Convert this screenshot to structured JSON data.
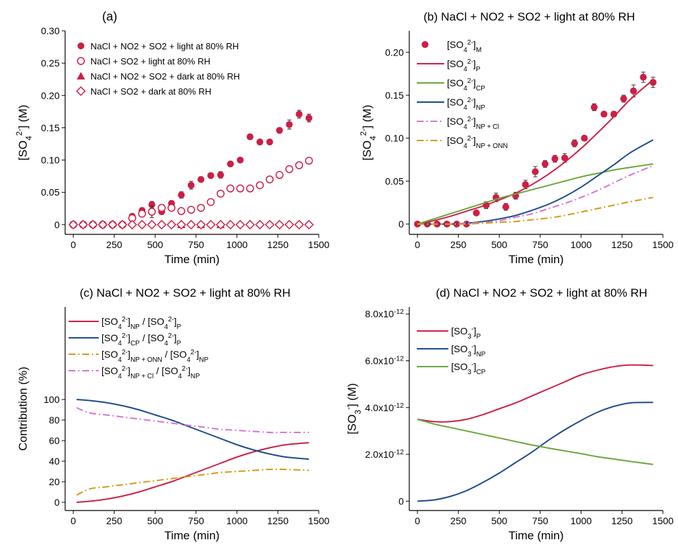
{
  "colors": {
    "red": "#cc1f46",
    "blue": "#1b4a8c",
    "green": "#6aa53a",
    "magenta": "#d673d6",
    "orange": "#d29b14"
  },
  "chart_data": [
    {
      "id": "a",
      "type": "scatter",
      "panel_label": "(a)",
      "title": "",
      "xlabel": "Time (min)",
      "ylabel": "[SO4 2-] (M)",
      "xlim": [
        -50,
        1500
      ],
      "ylim": [
        -0.015,
        0.3
      ],
      "xticks": [
        0,
        250,
        500,
        750,
        1000,
        1250,
        1500
      ],
      "yticks": [
        0,
        0.05,
        0.1,
        0.15,
        0.2,
        0.25,
        0.3
      ],
      "ytick_labels": [
        "0",
        "0.05",
        "0.10",
        "0.15",
        "0.20",
        "0.25",
        "0.30"
      ],
      "legend_position": "top-left",
      "series": [
        {
          "name": "NaCl + NO2 + SO2 + light at 80% RH",
          "marker": "filled-circle",
          "color": "#cc1f46",
          "x": [
            0,
            60,
            120,
            180,
            240,
            300,
            360,
            420,
            480,
            540,
            600,
            660,
            720,
            780,
            840,
            900,
            960,
            1020,
            1080,
            1140,
            1200,
            1260,
            1320,
            1380,
            1440
          ],
          "y": [
            0,
            0,
            0,
            0,
            0,
            0,
            0.013,
            0.022,
            0.031,
            0.02,
            0.033,
            0.046,
            0.061,
            0.07,
            0.076,
            0.077,
            0.094,
            0.1,
            0.136,
            0.128,
            0.128,
            0.146,
            0.155,
            0.171,
            0.165
          ],
          "err": [
            0.002,
            0.002,
            0.002,
            0.002,
            0.002,
            0.002,
            0.003,
            0.004,
            0.005,
            0.004,
            0.004,
            0.005,
            0.006,
            0.004,
            0.004,
            0.005,
            0.004,
            0.003,
            0.004,
            0.003,
            0.003,
            0.004,
            0.007,
            0.006,
            0.006
          ]
        },
        {
          "name": "NaCl + SO2 + light at 80% RH",
          "marker": "open-circle",
          "color": "#cc1f46",
          "x": [
            0,
            60,
            120,
            180,
            240,
            300,
            360,
            420,
            480,
            540,
            600,
            660,
            720,
            780,
            840,
            900,
            960,
            1020,
            1080,
            1140,
            1200,
            1260,
            1320,
            1380,
            1440
          ],
          "y": [
            0,
            0,
            0,
            0,
            0,
            0,
            0.01,
            0.017,
            0.02,
            0.026,
            0.026,
            0.021,
            0.023,
            0.026,
            0.035,
            0.048,
            0.056,
            0.056,
            0.056,
            0.061,
            0.07,
            0.077,
            0.086,
            0.092,
            0.099
          ],
          "err": [
            0.002,
            0.002,
            0.002,
            0.002,
            0.002,
            0.002,
            0.004,
            0.005,
            0.009,
            0.005,
            0.004,
            0.004,
            0.003,
            0.003,
            0.003,
            0.003,
            0.004,
            0.004,
            0.003,
            0.003,
            0.003,
            0.004,
            0.004,
            0.005,
            0.004
          ]
        },
        {
          "name": "NaCl + NO2 + SO2 + dark at 80% RH",
          "marker": "filled-triangle",
          "color": "#cc1f46",
          "x": [
            660,
            780,
            900
          ],
          "y": [
            0,
            0,
            0
          ]
        },
        {
          "name": "NaCl + SO2 + dark at 80% RH",
          "marker": "open-diamond",
          "color": "#cc1f46",
          "x": [
            0,
            60,
            120,
            180,
            240,
            300,
            360,
            420,
            480,
            540,
            600,
            660,
            720,
            780,
            840,
            900,
            960,
            1020,
            1080,
            1140,
            1200,
            1260,
            1320,
            1380,
            1440
          ],
          "y": [
            0,
            0,
            0,
            0,
            0,
            0,
            0,
            0,
            0,
            0,
            0,
            0,
            0,
            0,
            0,
            0,
            0,
            0,
            0,
            0,
            0,
            0,
            0,
            0,
            0
          ]
        }
      ]
    },
    {
      "id": "b",
      "type": "line",
      "panel_label": "(b)",
      "title": "NaCl + NO2 + SO2 + light at 80% RH",
      "xlabel": "Time (min)",
      "ylabel": "[SO4 2-] (M)",
      "xlim": [
        -50,
        1500
      ],
      "ylim": [
        -0.012,
        0.225
      ],
      "xticks": [
        0,
        250,
        500,
        750,
        1000,
        1250,
        1500
      ],
      "yticks": [
        0,
        0.05,
        0.1,
        0.15,
        0.2
      ],
      "ytick_labels": [
        "0",
        "0.05",
        "0.10",
        "0.15",
        "0.20"
      ],
      "legend_position": "top-left",
      "series": [
        {
          "name": "[SO4 2-]M",
          "marker": "filled-circle",
          "color": "#cc1f46",
          "x": [
            0,
            60,
            120,
            180,
            240,
            300,
            360,
            420,
            480,
            540,
            600,
            660,
            720,
            780,
            840,
            900,
            960,
            1020,
            1080,
            1140,
            1200,
            1260,
            1320,
            1380,
            1440
          ],
          "y": [
            0,
            0,
            0,
            0,
            0,
            0,
            0.013,
            0.022,
            0.031,
            0.02,
            0.033,
            0.046,
            0.061,
            0.07,
            0.076,
            0.077,
            0.094,
            0.1,
            0.136,
            0.128,
            0.128,
            0.146,
            0.155,
            0.171,
            0.165
          ],
          "err": [
            0.002,
            0.002,
            0.002,
            0.002,
            0.002,
            0.002,
            0.003,
            0.004,
            0.005,
            0.004,
            0.004,
            0.005,
            0.006,
            0.004,
            0.004,
            0.005,
            0.004,
            0.003,
            0.004,
            0.003,
            0.003,
            0.004,
            0.007,
            0.006,
            0.006
          ]
        },
        {
          "name": "[SO4 2-]P",
          "style": "solid",
          "color": "#cc1f46",
          "x": [
            0,
            100,
            200,
            300,
            400,
            500,
            600,
            700,
            800,
            900,
            1000,
            1100,
            1200,
            1300,
            1440
          ],
          "y": [
            0,
            0.004,
            0.009,
            0.015,
            0.021,
            0.028,
            0.036,
            0.046,
            0.058,
            0.072,
            0.088,
            0.106,
            0.125,
            0.145,
            0.168
          ]
        },
        {
          "name": "[SO4 2-]CP",
          "style": "solid",
          "color": "#6aa53a",
          "x": [
            0,
            100,
            200,
            300,
            400,
            500,
            600,
            700,
            800,
            900,
            1000,
            1100,
            1200,
            1300,
            1440
          ],
          "y": [
            0,
            0.006,
            0.012,
            0.018,
            0.024,
            0.03,
            0.035,
            0.04,
            0.045,
            0.05,
            0.055,
            0.059,
            0.063,
            0.066,
            0.07
          ]
        },
        {
          "name": "[SO4 2-]NP",
          "style": "solid",
          "color": "#1b4a8c",
          "x": [
            0,
            100,
            200,
            300,
            400,
            500,
            600,
            700,
            800,
            900,
            1000,
            1100,
            1200,
            1300,
            1440
          ],
          "y": [
            0,
            0,
            0,
            0.001,
            0.003,
            0.006,
            0.01,
            0.016,
            0.023,
            0.032,
            0.043,
            0.056,
            0.069,
            0.083,
            0.098
          ]
        },
        {
          "name": "[SO4 2-]NP + Cl",
          "style": "dashdot",
          "color": "#d673d6",
          "x": [
            0,
            100,
            200,
            300,
            400,
            500,
            600,
            700,
            800,
            900,
            1000,
            1100,
            1200,
            1300,
            1440
          ],
          "y": [
            0,
            0,
            0,
            0.001,
            0.002,
            0.004,
            0.008,
            0.012,
            0.018,
            0.024,
            0.031,
            0.039,
            0.048,
            0.057,
            0.068
          ]
        },
        {
          "name": "[SO4 2-]NP + ONN",
          "style": "dashdot",
          "color": "#d29b14",
          "x": [
            0,
            100,
            200,
            300,
            400,
            500,
            600,
            700,
            800,
            900,
            1000,
            1100,
            1200,
            1300,
            1440
          ],
          "y": [
            0,
            0,
            0,
            0,
            0.001,
            0.002,
            0.003,
            0.005,
            0.007,
            0.01,
            0.014,
            0.018,
            0.022,
            0.026,
            0.031
          ]
        }
      ]
    },
    {
      "id": "c",
      "type": "line",
      "panel_label": "(c)",
      "title": "NaCl + NO2 + SO2 + light at 80% RH",
      "xlabel": "Time (min)",
      "ylabel": "Contribution (%)",
      "xlim": [
        -50,
        1500
      ],
      "ylim": [
        -8,
        190
      ],
      "xticks": [
        0,
        250,
        500,
        750,
        1000,
        1250,
        1500
      ],
      "yticks": [
        0,
        20,
        40,
        60,
        80,
        100
      ],
      "ytick_labels": [
        "0",
        "20",
        "40",
        "60",
        "80",
        "100"
      ],
      "legend_position": "top-left",
      "series": [
        {
          "name": "[SO4 2-]NP / [SO4 2-]P",
          "style": "solid",
          "color": "#cc1f46",
          "x": [
            20,
            100,
            200,
            300,
            400,
            500,
            600,
            700,
            800,
            900,
            1000,
            1100,
            1200,
            1300,
            1440
          ],
          "y": [
            0,
            1,
            3,
            6,
            10,
            15,
            20,
            26,
            32,
            38,
            44,
            49,
            53,
            56,
            58
          ]
        },
        {
          "name": "[SO4 2-]CP / [SO4 2-]P",
          "style": "solid",
          "color": "#1b4a8c",
          "x": [
            20,
            100,
            200,
            300,
            400,
            500,
            600,
            700,
            800,
            900,
            1000,
            1100,
            1200,
            1300,
            1440
          ],
          "y": [
            100,
            99,
            97,
            94,
            90,
            85,
            80,
            74,
            68,
            62,
            56,
            51,
            47,
            44,
            42
          ]
        },
        {
          "name": "[SO4 2-]NP + ONN / [SO4 2-]NP",
          "style": "dashdot",
          "color": "#d29b14",
          "x": [
            20,
            100,
            200,
            300,
            400,
            500,
            600,
            700,
            800,
            900,
            1000,
            1100,
            1200,
            1300,
            1440
          ],
          "y": [
            7,
            13,
            15,
            17,
            19,
            21,
            23,
            25,
            27,
            29,
            30,
            31,
            32,
            32,
            31
          ]
        },
        {
          "name": "[SO4 2-]NP + Cl / [SO4 2-]NP",
          "style": "dashdot",
          "color": "#d673d6",
          "x": [
            20,
            100,
            200,
            300,
            400,
            500,
            600,
            700,
            800,
            900,
            1000,
            1100,
            1200,
            1300,
            1440
          ],
          "y": [
            92,
            87,
            85,
            83,
            81,
            79,
            77,
            75,
            73,
            71,
            70,
            69,
            68,
            68,
            68
          ]
        }
      ]
    },
    {
      "id": "d",
      "type": "line",
      "panel_label": "(d)",
      "title": "NaCl + NO2 + SO2 + light at 80% RH",
      "xlabel": "Time (min)",
      "ylabel": "[SO3 -] (M)",
      "xlim": [
        -50,
        1500
      ],
      "ylim": [
        -4e-13,
        8.3e-12
      ],
      "xticks": [
        0,
        250,
        500,
        750,
        1000,
        1250,
        1500
      ],
      "yticks": [
        0,
        2e-12,
        4e-12,
        6e-12,
        8e-12
      ],
      "ytick_labels": [
        "0",
        "2.0x10-12",
        "4.0x10-12",
        "6.0x10-12",
        "8.0x10-12"
      ],
      "legend_position": "top-left",
      "series": [
        {
          "name": "[SO3 -]P",
          "style": "solid",
          "color": "#cc1f46",
          "x": [
            0,
            100,
            200,
            300,
            400,
            500,
            600,
            700,
            800,
            900,
            1000,
            1100,
            1200,
            1300,
            1440
          ],
          "y": [
            3.5e-12,
            3.4e-12,
            3.4e-12,
            3.5e-12,
            3.7e-12,
            3.95e-12,
            4.2e-12,
            4.5e-12,
            4.8e-12,
            5.1e-12,
            5.4e-12,
            5.6e-12,
            5.75e-12,
            5.82e-12,
            5.8e-12
          ]
        },
        {
          "name": "[SO3 -]NP",
          "style": "solid",
          "color": "#1b4a8c",
          "x": [
            0,
            100,
            200,
            300,
            400,
            500,
            600,
            700,
            800,
            900,
            1000,
            1100,
            1200,
            1300,
            1440
          ],
          "y": [
            0,
            5e-14,
            2e-13,
            4.5e-13,
            8e-13,
            1.2e-12,
            1.65e-12,
            2.1e-12,
            2.6e-12,
            3.05e-12,
            3.45e-12,
            3.8e-12,
            4.05e-12,
            4.2e-12,
            4.22e-12
          ]
        },
        {
          "name": "[SO3 -]CP",
          "style": "solid",
          "color": "#6aa53a",
          "x": [
            0,
            100,
            200,
            300,
            400,
            500,
            600,
            700,
            800,
            900,
            1000,
            1100,
            1200,
            1300,
            1440
          ],
          "y": [
            3.5e-12,
            3.3e-12,
            3.15e-12,
            3e-12,
            2.85e-12,
            2.7e-12,
            2.55e-12,
            2.4e-12,
            2.27e-12,
            2.15e-12,
            2.03e-12,
            1.9e-12,
            1.8e-12,
            1.7e-12,
            1.57e-12
          ]
        }
      ]
    }
  ]
}
